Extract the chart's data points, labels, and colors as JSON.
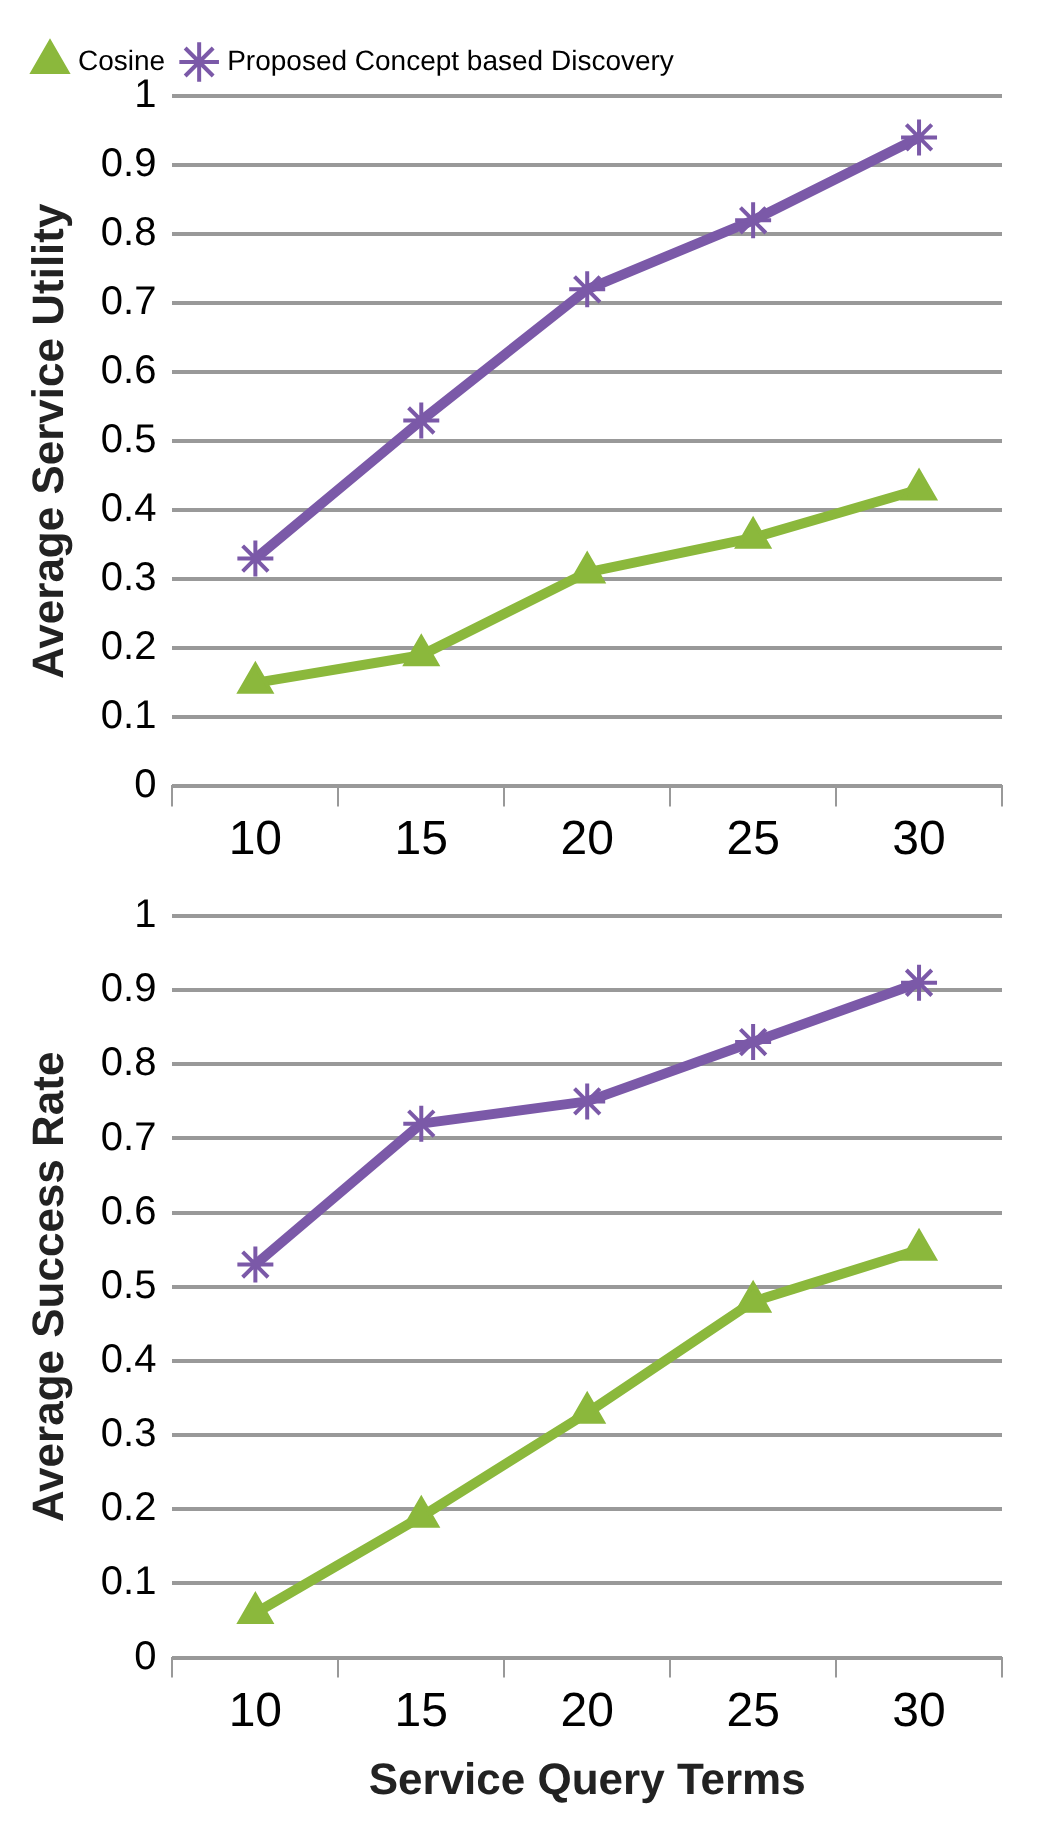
{
  "chart_data": [
    {
      "type": "line",
      "ylabel": "Average Service Utility",
      "categories": [
        "10",
        "15",
        "20",
        "25",
        "30"
      ],
      "ylim": [
        0,
        1
      ],
      "yticks": [
        0,
        0.1,
        0.2,
        0.3,
        0.4,
        0.5,
        0.6,
        0.7,
        0.8,
        0.9,
        1
      ],
      "grid": "y",
      "legend": "top left",
      "series": [
        {
          "name": "Cosine",
          "color": "#8bb83c",
          "marker": "triangle",
          "values": [
            0.15,
            0.19,
            0.31,
            0.36,
            0.43
          ]
        },
        {
          "name": "Proposed Concept based Discovery",
          "color": "#7b59a8",
          "marker": "cross",
          "values": [
            0.33,
            0.53,
            0.72,
            0.82,
            0.94
          ]
        }
      ]
    },
    {
      "type": "line",
      "ylabel": "Average Success Rate",
      "xlabel": "Service Query Terms",
      "categories": [
        "10",
        "15",
        "20",
        "25",
        "30"
      ],
      "ylim": [
        0,
        1
      ],
      "yticks": [
        0,
        0.1,
        0.2,
        0.3,
        0.4,
        0.5,
        0.6,
        0.7,
        0.8,
        0.9,
        1
      ],
      "grid": "y",
      "series": [
        {
          "color": "#8bb83c",
          "marker": "triangle",
          "values": [
            0.06,
            0.19,
            0.33,
            0.48,
            0.55
          ]
        },
        {
          "color": "#7b59a8",
          "marker": "cross",
          "values": [
            0.53,
            0.72,
            0.75,
            0.83,
            0.91
          ]
        }
      ]
    }
  ]
}
